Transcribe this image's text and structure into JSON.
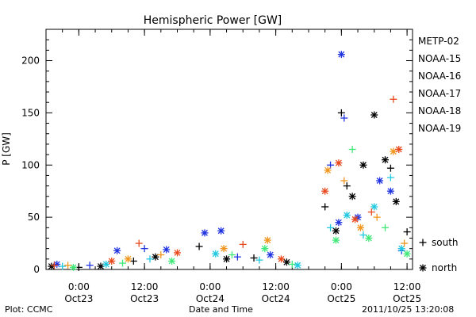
{
  "chart_data": {
    "type": "scatter",
    "title": "Hemispheric Power [GW]",
    "ylabel": "P [GW]",
    "xlabel": "Date and Time",
    "ylim": [
      0,
      230
    ],
    "yticks": [
      0,
      50,
      100,
      150,
      200
    ],
    "xlim": [
      "2011-10-22T18:00",
      "2011-10-25T13:00"
    ],
    "xticks": [
      {
        "value": "2011-10-23T00:00",
        "line1": "0:00",
        "line2": "Oct23"
      },
      {
        "value": "2011-10-23T12:00",
        "line1": "12:00",
        "line2": "Oct23"
      },
      {
        "value": "2011-10-24T00:00",
        "line1": "0:00",
        "line2": "Oct24"
      },
      {
        "value": "2011-10-24T12:00",
        "line1": "12:00",
        "line2": "Oct24"
      },
      {
        "value": "2011-10-25T00:00",
        "line1": "0:00",
        "line2": "Oct25"
      },
      {
        "value": "2011-10-25T12:00",
        "line1": "12:00",
        "line2": "Oct25"
      }
    ],
    "markers_legend": [
      {
        "symbol": "+",
        "label": "south"
      },
      {
        "symbol": "*",
        "label": "north"
      }
    ],
    "series": [
      {
        "name": "METP-02",
        "color": "#000000",
        "points": [
          {
            "t": "2011-10-22T19:00",
            "y": 3,
            "m": "*"
          },
          {
            "t": "2011-10-23T00:00",
            "y": 2,
            "m": "+"
          },
          {
            "t": "2011-10-23T04:00",
            "y": 3,
            "m": "*"
          },
          {
            "t": "2011-10-23T10:00",
            "y": 8,
            "m": "+"
          },
          {
            "t": "2011-10-23T14:00",
            "y": 12,
            "m": "*"
          },
          {
            "t": "2011-10-23T22:00",
            "y": 22,
            "m": "+"
          },
          {
            "t": "2011-10-24T03:00",
            "y": 10,
            "m": "*"
          },
          {
            "t": "2011-10-24T08:00",
            "y": 11,
            "m": "+"
          },
          {
            "t": "2011-10-24T14:00",
            "y": 7,
            "m": "*"
          },
          {
            "t": "2011-10-24T21:00",
            "y": 60,
            "m": "+"
          },
          {
            "t": "2011-10-24T23:00",
            "y": 37,
            "m": "*"
          },
          {
            "t": "2011-10-25T00:00",
            "y": 150,
            "m": "+"
          },
          {
            "t": "2011-10-25T01:00",
            "y": 80,
            "m": "+"
          },
          {
            "t": "2011-10-25T02:00",
            "y": 70,
            "m": "*"
          },
          {
            "t": "2011-10-25T04:00",
            "y": 100,
            "m": "*"
          },
          {
            "t": "2011-10-25T06:00",
            "y": 148,
            "m": "*"
          },
          {
            "t": "2011-10-25T08:00",
            "y": 105,
            "m": "*"
          },
          {
            "t": "2011-10-25T09:00",
            "y": 97,
            "m": "+"
          },
          {
            "t": "2011-10-25T10:00",
            "y": 65,
            "m": "*"
          },
          {
            "t": "2011-10-25T12:00",
            "y": 36,
            "m": "+"
          }
        ]
      },
      {
        "name": "NOAA-15",
        "color": "#1f33e0",
        "points": [
          {
            "t": "2011-10-22T20:00",
            "y": 5,
            "m": "*"
          },
          {
            "t": "2011-10-23T02:00",
            "y": 4,
            "m": "+"
          },
          {
            "t": "2011-10-23T07:00",
            "y": 18,
            "m": "*"
          },
          {
            "t": "2011-10-23T12:00",
            "y": 20,
            "m": "+"
          },
          {
            "t": "2011-10-23T16:00",
            "y": 19,
            "m": "*"
          },
          {
            "t": "2011-10-23T23:00",
            "y": 35,
            "m": "*"
          },
          {
            "t": "2011-10-24T02:00",
            "y": 37,
            "m": "*"
          },
          {
            "t": "2011-10-24T05:00",
            "y": 12,
            "m": "+"
          },
          {
            "t": "2011-10-24T11:00",
            "y": 14,
            "m": "*"
          },
          {
            "t": "2011-10-24T22:00",
            "y": 100,
            "m": "+"
          },
          {
            "t": "2011-10-24T23:30",
            "y": 45,
            "m": "*"
          },
          {
            "t": "2011-10-25T00:00",
            "y": 206,
            "m": "*"
          },
          {
            "t": "2011-10-25T00:30",
            "y": 145,
            "m": "+"
          },
          {
            "t": "2011-10-25T03:00",
            "y": 50,
            "m": "*"
          },
          {
            "t": "2011-10-25T07:00",
            "y": 85,
            "m": "*"
          },
          {
            "t": "2011-10-25T09:00",
            "y": 75,
            "m": "*"
          },
          {
            "t": "2011-10-25T11:00",
            "y": 18,
            "m": "+"
          }
        ]
      },
      {
        "name": "NOAA-16",
        "color": "#20c8e0",
        "points": [
          {
            "t": "2011-10-22T21:00",
            "y": 3,
            "m": "+"
          },
          {
            "t": "2011-10-23T05:00",
            "y": 5,
            "m": "*"
          },
          {
            "t": "2011-10-23T13:00",
            "y": 10,
            "m": "+"
          },
          {
            "t": "2011-10-24T01:00",
            "y": 15,
            "m": "*"
          },
          {
            "t": "2011-10-24T09:00",
            "y": 9,
            "m": "+"
          },
          {
            "t": "2011-10-24T16:00",
            "y": 4,
            "m": "*"
          },
          {
            "t": "2011-10-24T22:00",
            "y": 40,
            "m": "+"
          },
          {
            "t": "2011-10-25T01:00",
            "y": 52,
            "m": "*"
          },
          {
            "t": "2011-10-25T04:00",
            "y": 33,
            "m": "+"
          },
          {
            "t": "2011-10-25T06:00",
            "y": 60,
            "m": "*"
          },
          {
            "t": "2011-10-25T09:00",
            "y": 88,
            "m": "+"
          },
          {
            "t": "2011-10-25T11:00",
            "y": 20,
            "m": "*"
          }
        ]
      },
      {
        "name": "NOAA-17",
        "color": "#40e878",
        "points": [
          {
            "t": "2011-10-22T23:00",
            "y": 2,
            "m": "*"
          },
          {
            "t": "2011-10-23T08:00",
            "y": 6,
            "m": "+"
          },
          {
            "t": "2011-10-23T17:00",
            "y": 8,
            "m": "*"
          },
          {
            "t": "2011-10-24T04:00",
            "y": 14,
            "m": "+"
          },
          {
            "t": "2011-10-24T10:00",
            "y": 20,
            "m": "*"
          },
          {
            "t": "2011-10-24T15:00",
            "y": 5,
            "m": "+"
          },
          {
            "t": "2011-10-24T23:00",
            "y": 28,
            "m": "*"
          },
          {
            "t": "2011-10-25T02:00",
            "y": 115,
            "m": "+"
          },
          {
            "t": "2011-10-25T05:00",
            "y": 30,
            "m": "*"
          },
          {
            "t": "2011-10-25T08:00",
            "y": 40,
            "m": "+"
          },
          {
            "t": "2011-10-25T12:00",
            "y": 15,
            "m": "*"
          }
        ]
      },
      {
        "name": "NOAA-18",
        "color": "#f0961e",
        "points": [
          {
            "t": "2011-10-22T22:00",
            "y": 4,
            "m": "+"
          },
          {
            "t": "2011-10-23T09:00",
            "y": 10,
            "m": "*"
          },
          {
            "t": "2011-10-23T15:00",
            "y": 14,
            "m": "+"
          },
          {
            "t": "2011-10-24T02:30",
            "y": 20,
            "m": "*"
          },
          {
            "t": "2011-10-24T10:30",
            "y": 28,
            "m": "*"
          },
          {
            "t": "2011-10-24T21:30",
            "y": 95,
            "m": "*"
          },
          {
            "t": "2011-10-25T00:30",
            "y": 85,
            "m": "+"
          },
          {
            "t": "2011-10-25T03:30",
            "y": 40,
            "m": "*"
          },
          {
            "t": "2011-10-25T06:30",
            "y": 50,
            "m": "+"
          },
          {
            "t": "2011-10-25T09:30",
            "y": 113,
            "m": "*"
          },
          {
            "t": "2011-10-25T11:30",
            "y": 25,
            "m": "+"
          }
        ]
      },
      {
        "name": "NOAA-19",
        "color": "#e84a1e",
        "points": [
          {
            "t": "2011-10-22T19:30",
            "y": 4,
            "m": "+"
          },
          {
            "t": "2011-10-23T06:00",
            "y": 8,
            "m": "*"
          },
          {
            "t": "2011-10-23T11:00",
            "y": 25,
            "m": "+"
          },
          {
            "t": "2011-10-23T18:00",
            "y": 16,
            "m": "*"
          },
          {
            "t": "2011-10-24T06:00",
            "y": 24,
            "m": "+"
          },
          {
            "t": "2011-10-24T13:00",
            "y": 10,
            "m": "*"
          },
          {
            "t": "2011-10-24T21:00",
            "y": 75,
            "m": "*"
          },
          {
            "t": "2011-10-24T23:30",
            "y": 102,
            "m": "*"
          },
          {
            "t": "2011-10-25T02:30",
            "y": 48,
            "m": "*"
          },
          {
            "t": "2011-10-25T05:30",
            "y": 55,
            "m": "+"
          },
          {
            "t": "2011-10-25T09:30",
            "y": 163,
            "m": "+"
          },
          {
            "t": "2011-10-25T10:30",
            "y": 115,
            "m": "*"
          }
        ]
      }
    ]
  },
  "footer": {
    "plot_credit": "Plot: CCMC",
    "xlabel": "Date and Time",
    "timestamp": "2011/10/25 13:20:08"
  }
}
